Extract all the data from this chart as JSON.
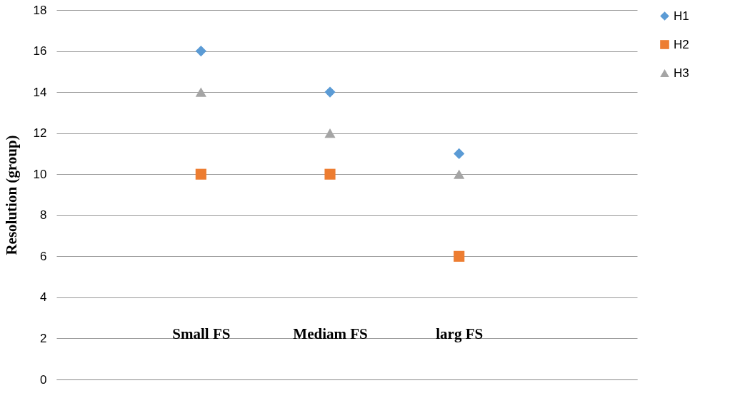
{
  "chart_data": {
    "type": "scatter",
    "ylabel": "Resolution (group)",
    "categories": [
      "Small FS",
      "Mediam FS",
      "larg FS"
    ],
    "series": [
      {
        "name": "H1",
        "color": "#5b9bd5",
        "marker": "diamond",
        "values": [
          16,
          14,
          11
        ]
      },
      {
        "name": "H2",
        "color": "#ed7d31",
        "marker": "square",
        "values": [
          10,
          10,
          6
        ]
      },
      {
        "name": "H3",
        "color": "#a5a5a5",
        "marker": "triangle",
        "values": [
          14,
          12,
          10
        ]
      }
    ],
    "ylim": [
      0,
      18
    ],
    "yticks": [
      0,
      2,
      4,
      6,
      8,
      10,
      12,
      14,
      16,
      18
    ],
    "grid": "y",
    "legend": "right"
  }
}
